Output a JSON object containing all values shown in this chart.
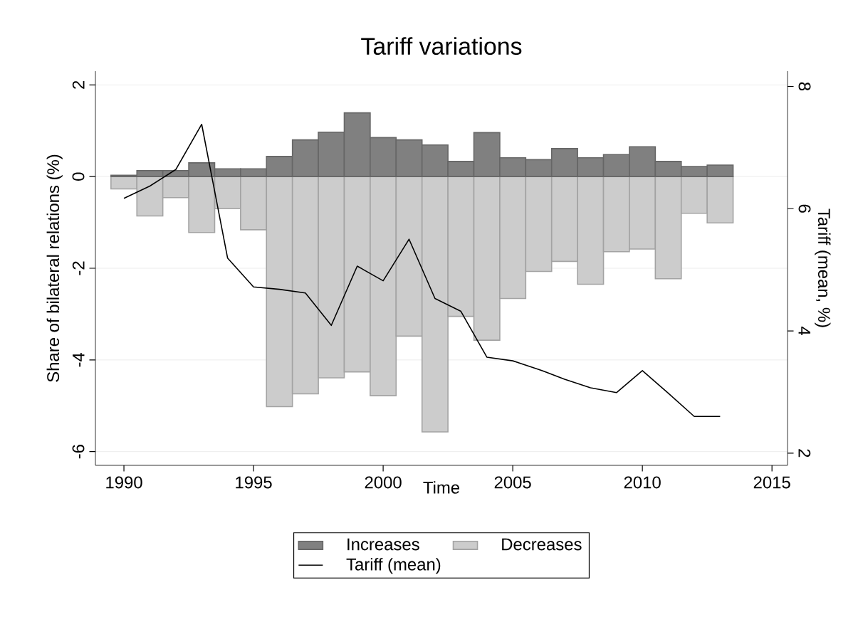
{
  "chart_data": {
    "type": "bar",
    "title": "Tariff variations",
    "xlabel": "Time",
    "ylabel": "Share of bilateral relations (%)",
    "y2label": "Tariff (mean, %)",
    "x": [
      1990,
      1991,
      1992,
      1993,
      1994,
      1995,
      1996,
      1997,
      1998,
      1999,
      2000,
      2001,
      2002,
      2003,
      2004,
      2005,
      2006,
      2007,
      2008,
      2009,
      2010,
      2011,
      2012,
      2013
    ],
    "series": [
      {
        "name": "Increases",
        "color": "#808080",
        "values": [
          0.03,
          0.13,
          0.13,
          0.3,
          0.17,
          0.17,
          0.44,
          0.8,
          0.97,
          1.39,
          0.85,
          0.8,
          0.69,
          0.33,
          0.96,
          0.41,
          0.37,
          0.61,
          0.41,
          0.48,
          0.65,
          0.33,
          0.22,
          0.25
        ]
      },
      {
        "name": "Decreases",
        "color": "#cccccc",
        "values": [
          -0.27,
          -0.86,
          -0.46,
          -1.22,
          -0.7,
          -1.16,
          -5.02,
          -4.74,
          -4.39,
          -4.26,
          -4.78,
          -3.48,
          -5.57,
          -3.05,
          -3.57,
          -2.66,
          -2.07,
          -1.85,
          -2.35,
          -1.64,
          -1.58,
          -2.23,
          -0.8,
          -1.01
        ]
      },
      {
        "name": "Tariff (mean)",
        "type": "line",
        "axis": "y2",
        "color": "#000000",
        "values": [
          6.17,
          6.37,
          6.64,
          7.38,
          5.19,
          4.72,
          4.68,
          4.62,
          4.09,
          5.06,
          4.82,
          5.5,
          4.53,
          4.32,
          3.57,
          3.51,
          3.37,
          3.21,
          3.07,
          2.99,
          3.35,
          2.98,
          2.6,
          2.6
        ]
      }
    ],
    "xlim": [
      1988.9,
      2015.6
    ],
    "xticks": [
      1990,
      1995,
      2000,
      2005,
      2010,
      2015
    ],
    "ylim": [
      -6.3,
      2.3
    ],
    "yticks": [
      -6,
      -4,
      -2,
      0,
      2
    ],
    "y2lim": [
      1.8,
      8.25
    ],
    "y2ticks": [
      2,
      4,
      6,
      8
    ],
    "stacked": true,
    "grid": "y",
    "legend": "bottom"
  }
}
